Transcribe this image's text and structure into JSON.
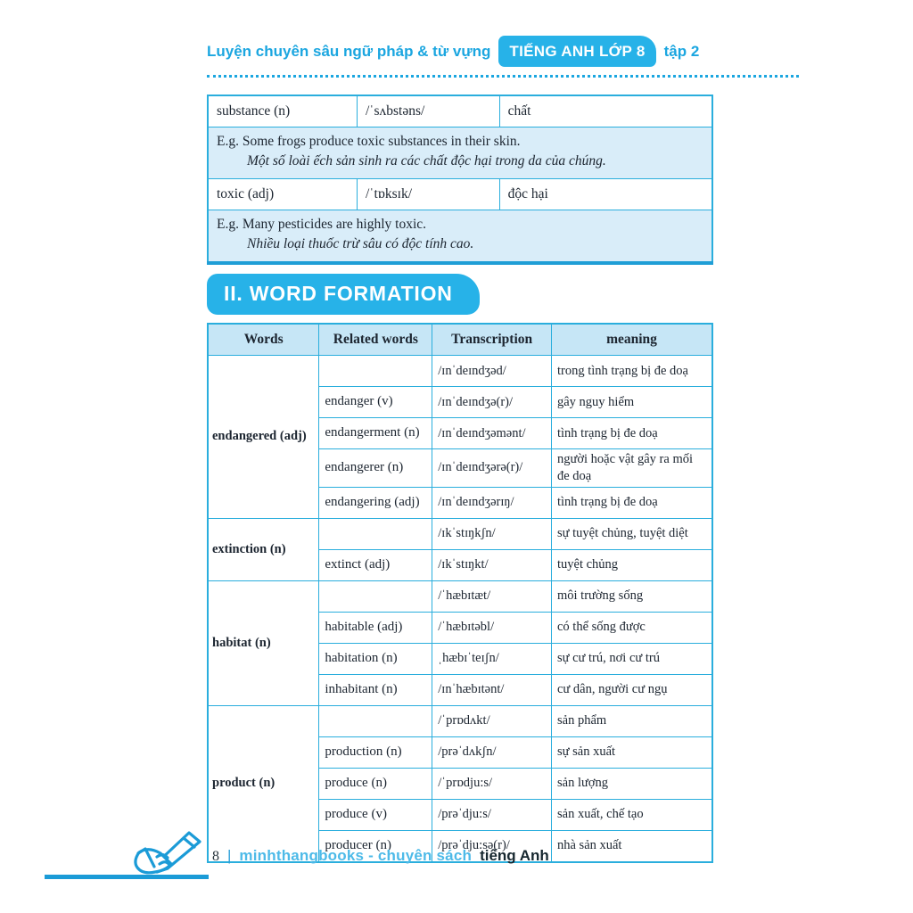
{
  "colors": {
    "accent": "#1ba6e0",
    "badge_fill": "#27b2e8",
    "table_border": "#2aaedd",
    "example_row_bg": "#d9edf9",
    "header_row_bg": "#c6e6f6",
    "footer_brand": "#4dbae8"
  },
  "header": {
    "title": "Luyện chuyên sâu ngữ pháp & từ vựng",
    "badge": "TIẾNG ANH LỚP 8",
    "suffix": "tập 2"
  },
  "vocab_table": {
    "rows": [
      {
        "word": "substance (n)",
        "transcription": "/ˈsʌbstəns/",
        "meaning": "chất",
        "example_en": "E.g. Some frogs produce toxic substances in their skin.",
        "example_vi": "Một số loài ếch sản sinh ra các chất độc hại trong da của chúng."
      },
      {
        "word": "toxic (adj)",
        "transcription": "/ˈtɒksɪk/",
        "meaning": "độc hại",
        "example_en": "E.g. Many pesticides are highly toxic.",
        "example_vi": "Nhiều loại thuốc trừ sâu có độc tính cao."
      }
    ]
  },
  "section": {
    "title": "II. WORD FORMATION"
  },
  "word_formation_table": {
    "headers": [
      "Words",
      "Related words",
      "Transcription",
      "meaning"
    ],
    "groups": [
      {
        "word": "endangered (adj)",
        "rows": [
          {
            "related": "",
            "transcription": "/ɪnˈdeɪndʒəd/",
            "meaning": "trong tình trạng bị đe doạ"
          },
          {
            "related": "endanger (v)",
            "transcription": "/ɪnˈdeɪndʒə(r)/",
            "meaning": "gây nguy hiểm"
          },
          {
            "related": "endangerment (n)",
            "transcription": "/ɪnˈdeɪndʒəmənt/",
            "meaning": "tình trạng bị đe doạ"
          },
          {
            "related": "endangerer (n)",
            "transcription": "/ɪnˈdeɪndʒərə(r)/",
            "meaning": "người hoặc vật gây ra mối đe doạ"
          },
          {
            "related": "endangering (adj)",
            "transcription": "/ɪnˈdeɪndʒərɪŋ/",
            "meaning": "tình trạng bị đe doạ"
          }
        ]
      },
      {
        "word": "extinction (n)",
        "rows": [
          {
            "related": "",
            "transcription": "/ɪkˈstɪŋkʃn/",
            "meaning": "sự tuyệt chủng, tuyệt diệt"
          },
          {
            "related": "extinct (adj)",
            "transcription": "/ɪkˈstɪŋkt/",
            "meaning": "tuyệt chủng"
          }
        ]
      },
      {
        "word": "habitat (n)",
        "rows": [
          {
            "related": "",
            "transcription": "/ˈhæbɪtæt/",
            "meaning": "môi trường sống"
          },
          {
            "related": "habitable (adj)",
            "transcription": "/ˈhæbɪtəbl/",
            "meaning": "có thể sống được"
          },
          {
            "related": "habitation (n)",
            "transcription": "ˌhæbɪˈteɪʃn/",
            "meaning": "sự cư trú, nơi cư trú"
          },
          {
            "related": "inhabitant (n)",
            "transcription": "/ɪnˈhæbɪtənt/",
            "meaning": "cư dân, người cư ngụ"
          }
        ]
      },
      {
        "word": "product (n)",
        "rows": [
          {
            "related": "",
            "transcription": "/ˈprɒdʌkt/",
            "meaning": "sản phẩm"
          },
          {
            "related": "production (n)",
            "transcription": "/prəˈdʌkʃn/",
            "meaning": "sự sản xuất"
          },
          {
            "related": "produce (n)",
            "transcription": "/ˈprɒdju:s/",
            "meaning": "sản lượng"
          },
          {
            "related": "produce (v)",
            "transcription": "/prəˈdju:s/",
            "meaning": "sản xuất, chế tạo"
          },
          {
            "related": "producer (n)",
            "transcription": "/prəˈdju:sə(r)/",
            "meaning": "nhà sản xuất"
          }
        ]
      }
    ]
  },
  "footer": {
    "page_number": "8",
    "separator": "|",
    "brand": "minhthangbooks - chuyên sách",
    "brand_bold": "tiếng Anh",
    "icon": "writing-hand-icon"
  }
}
